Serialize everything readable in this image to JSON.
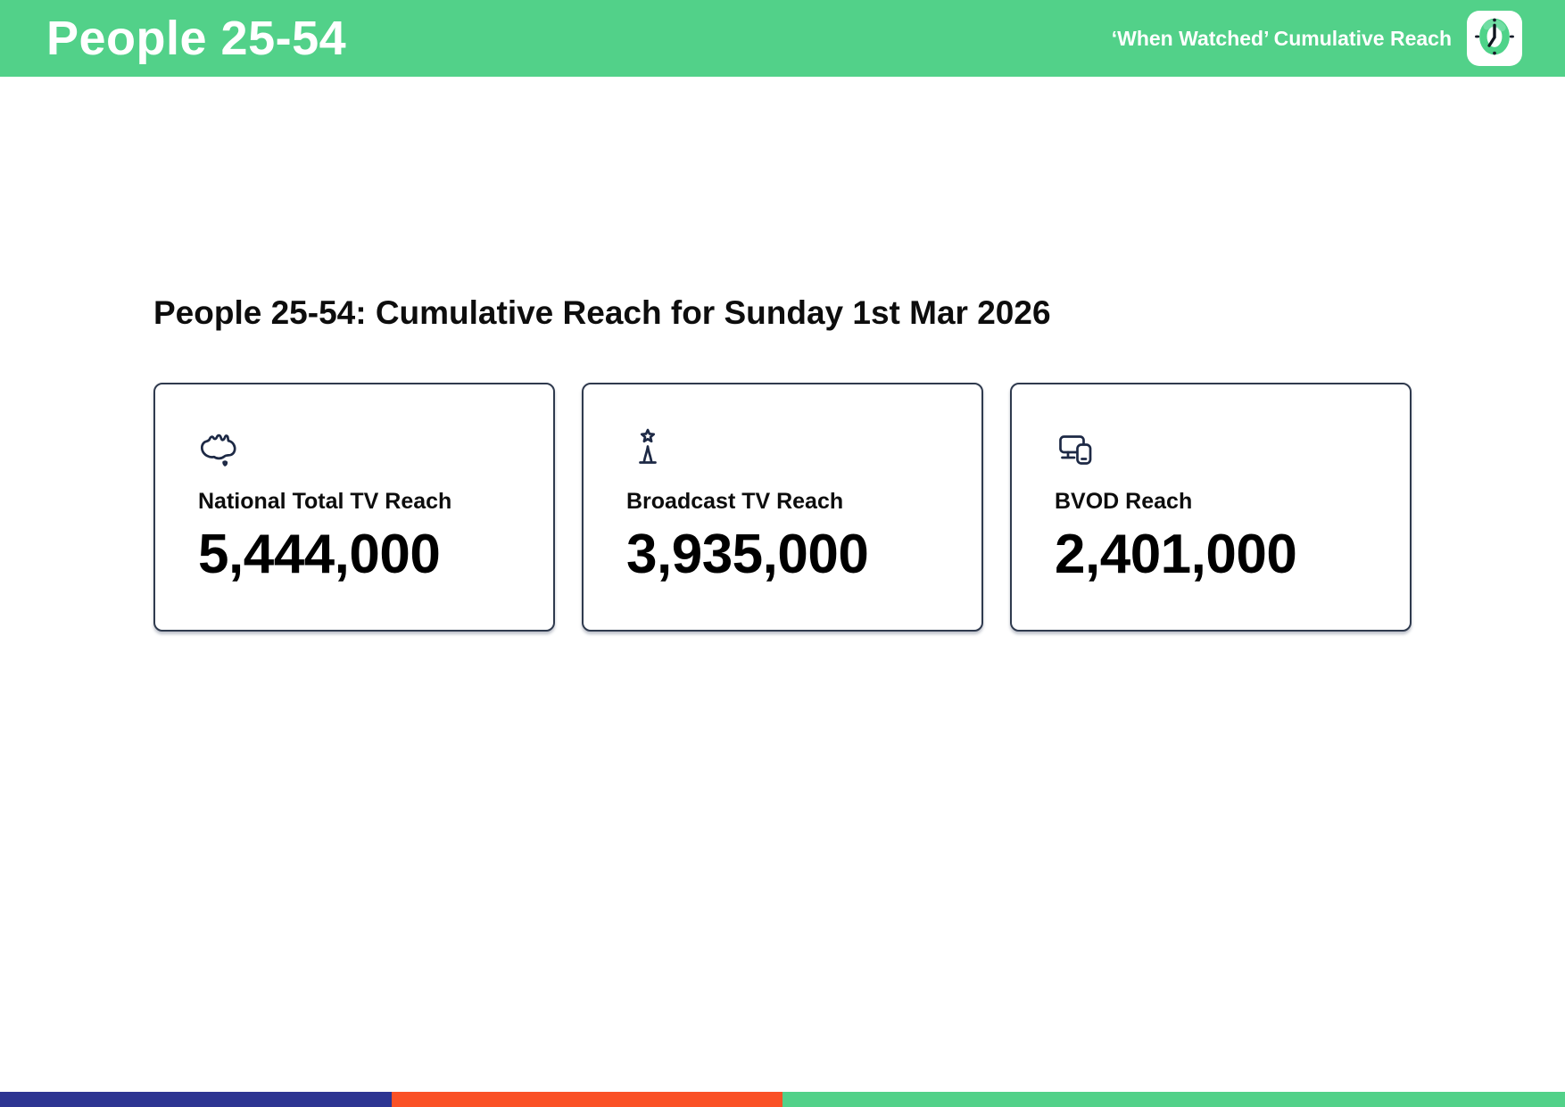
{
  "header": {
    "title": "People 25-54",
    "right_label": "‘When Watched’ Cumulative Reach",
    "bg_color": "#52d189",
    "badge_icon": "clock-logo"
  },
  "main": {
    "heading": "People 25-54: Cumulative Reach for Sunday 1st Mar 2026",
    "cards": [
      {
        "icon": "australia-map",
        "label": "National Total TV Reach",
        "value": "5,444,000"
      },
      {
        "icon": "broadcast-tower",
        "label": "Broadcast TV Reach",
        "value": "3,935,000"
      },
      {
        "icon": "tv-and-mobile-devices",
        "label": "BVOD Reach",
        "value": "2,401,000"
      }
    ]
  },
  "footer": {
    "segments": [
      {
        "name": "blue",
        "color": "#2d3592",
        "width_pct": 25
      },
      {
        "name": "orange",
        "color": "#fa5126",
        "width_pct": 25
      },
      {
        "name": "green",
        "color": "#52d189",
        "width_pct": 50
      }
    ]
  }
}
